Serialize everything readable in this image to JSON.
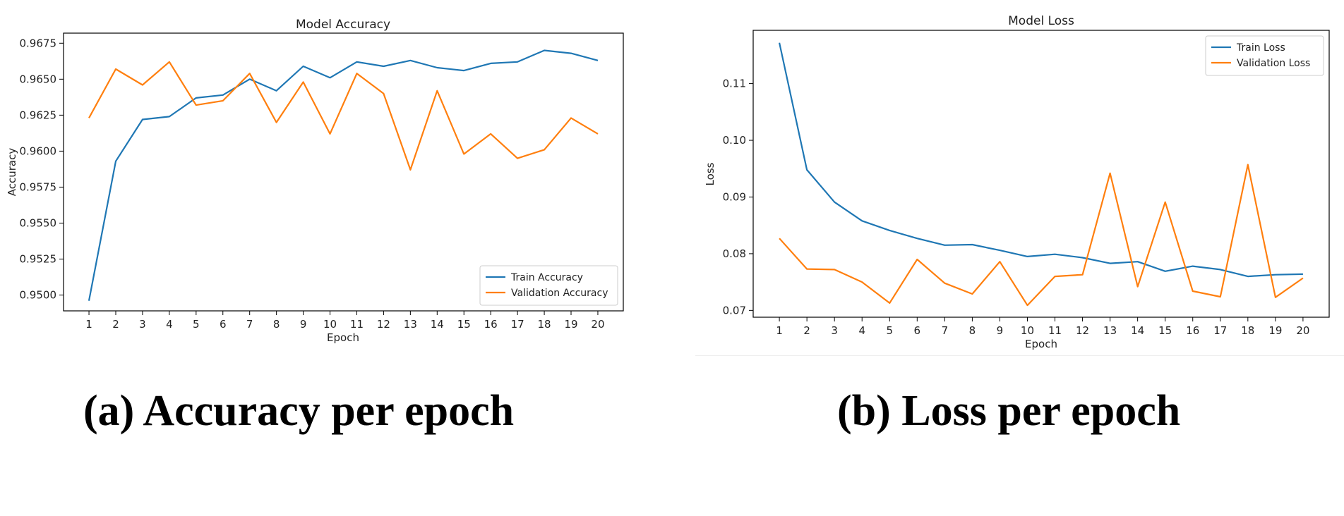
{
  "chart_data": [
    {
      "type": "line",
      "title": "Model Accuracy",
      "xlabel": "Epoch",
      "ylabel": "Accuracy",
      "x": [
        1,
        2,
        3,
        4,
        5,
        6,
        7,
        8,
        9,
        10,
        11,
        12,
        13,
        14,
        15,
        16,
        17,
        18,
        19,
        20
      ],
      "xticks": [
        "1",
        "2",
        "3",
        "4",
        "5",
        "6",
        "7",
        "8",
        "9",
        "10",
        "11",
        "12",
        "13",
        "14",
        "15",
        "16",
        "17",
        "18",
        "19",
        "20"
      ],
      "yticks": [
        "0.9500",
        "0.9525",
        "0.9550",
        "0.9575",
        "0.9600",
        "0.9625",
        "0.9650",
        "0.9675"
      ],
      "ylim": [
        0.9489,
        0.9682
      ],
      "xlim": [
        0.05,
        20.95
      ],
      "legend": "lower right",
      "grid": false,
      "series": [
        {
          "name": "Train Accuracy",
          "color": "#1f77b4",
          "values": [
            0.9496,
            0.9593,
            0.9622,
            0.9624,
            0.9637,
            0.9639,
            0.965,
            0.9642,
            0.9659,
            0.9651,
            0.9662,
            0.9659,
            0.9663,
            0.9658,
            0.9656,
            0.9661,
            0.9662,
            0.967,
            0.9668,
            0.9663
          ]
        },
        {
          "name": "Validation Accuracy",
          "color": "#ff7f0e",
          "values": [
            0.9623,
            0.9657,
            0.9646,
            0.9662,
            0.9632,
            0.9635,
            0.9654,
            0.962,
            0.9648,
            0.9612,
            0.9654,
            0.964,
            0.9587,
            0.9642,
            0.9598,
            0.9612,
            0.9595,
            0.9601,
            0.9623,
            0.9612
          ]
        }
      ]
    },
    {
      "type": "line",
      "title": "Model Loss",
      "xlabel": "Epoch",
      "ylabel": "Loss",
      "x": [
        1,
        2,
        3,
        4,
        5,
        6,
        7,
        8,
        9,
        10,
        11,
        12,
        13,
        14,
        15,
        16,
        17,
        18,
        19,
        20
      ],
      "xticks": [
        "1",
        "2",
        "3",
        "4",
        "5",
        "6",
        "7",
        "8",
        "9",
        "10",
        "11",
        "12",
        "13",
        "14",
        "15",
        "16",
        "17",
        "18",
        "19",
        "20"
      ],
      "yticks": [
        "0.07",
        "0.08",
        "0.09",
        "0.10",
        "0.11"
      ],
      "ylim": [
        0.0688,
        0.1194
      ],
      "xlim": [
        0.05,
        20.95
      ],
      "legend": "upper right",
      "grid": false,
      "series": [
        {
          "name": "Train Loss",
          "color": "#1f77b4",
          "values": [
            0.1172,
            0.0948,
            0.0891,
            0.0858,
            0.0841,
            0.0827,
            0.0815,
            0.0816,
            0.0806,
            0.0795,
            0.0799,
            0.0793,
            0.0783,
            0.0786,
            0.0769,
            0.0778,
            0.0772,
            0.076,
            0.0763,
            0.0764
          ]
        },
        {
          "name": "Validation Loss",
          "color": "#ff7f0e",
          "values": [
            0.0827,
            0.0773,
            0.0772,
            0.075,
            0.0713,
            0.079,
            0.0748,
            0.0729,
            0.0786,
            0.0709,
            0.076,
            0.0763,
            0.0942,
            0.0742,
            0.0891,
            0.0734,
            0.0724,
            0.0957,
            0.0723,
            0.0757
          ]
        }
      ]
    }
  ],
  "captions": {
    "a": "(a) Accuracy per epoch",
    "b": "(b) Loss per epoch"
  }
}
